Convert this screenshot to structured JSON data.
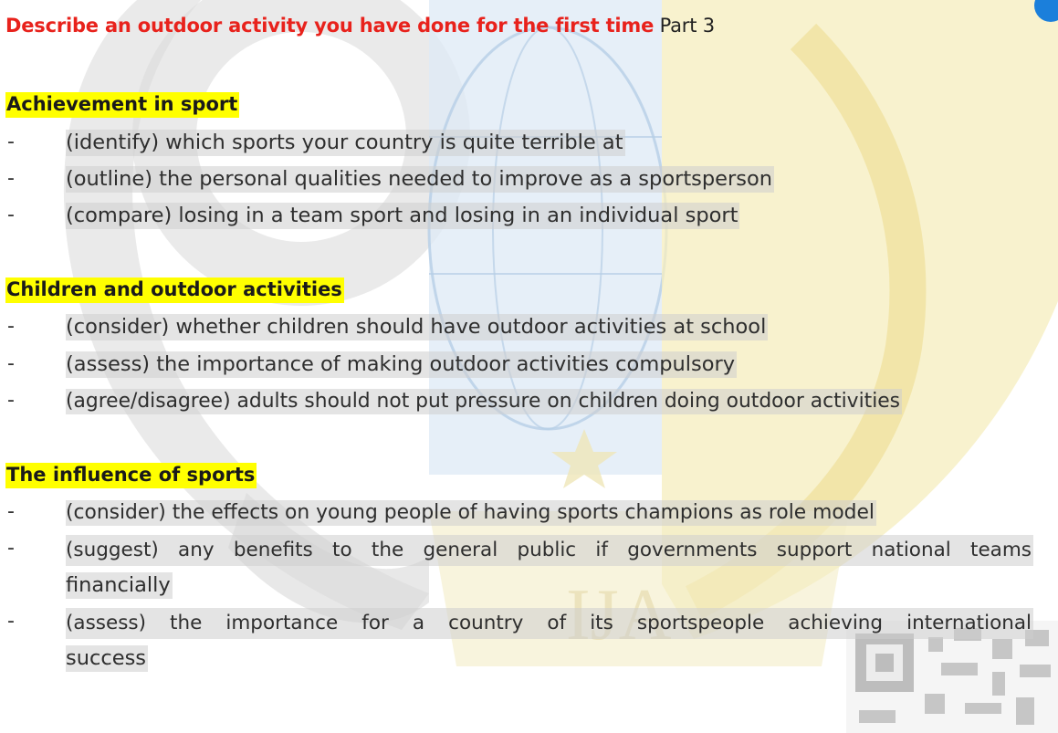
{
  "title": {
    "main": "Describe an outdoor activity you have done for the first time",
    "suffix": " Part 3"
  },
  "sections": [
    {
      "heading": "Achievement in sport",
      "items": [
        "(identify) which sports your country is quite terrible at",
        "(outline) the personal qualities needed to improve as a sportsperson",
        "(compare) losing in a team sport and losing in an individual sport"
      ]
    },
    {
      "heading": "Children and outdoor activities",
      "items": [
        "(consider) whether children should have outdoor activities at school",
        "(assess) the importance of making outdoor activities compulsory",
        "(agree/disagree) adults should not put pressure on children doing outdoor activities"
      ]
    },
    {
      "heading": "The influence of sports",
      "items": [
        "(consider) the effects on young people of having sports champions as role model",
        "(suggest) any benefits to the general public if governments support national teams",
        "financially",
        "(assess) the importance for a country of its sportspeople achieving international",
        "success"
      ]
    }
  ],
  "dash": "-"
}
